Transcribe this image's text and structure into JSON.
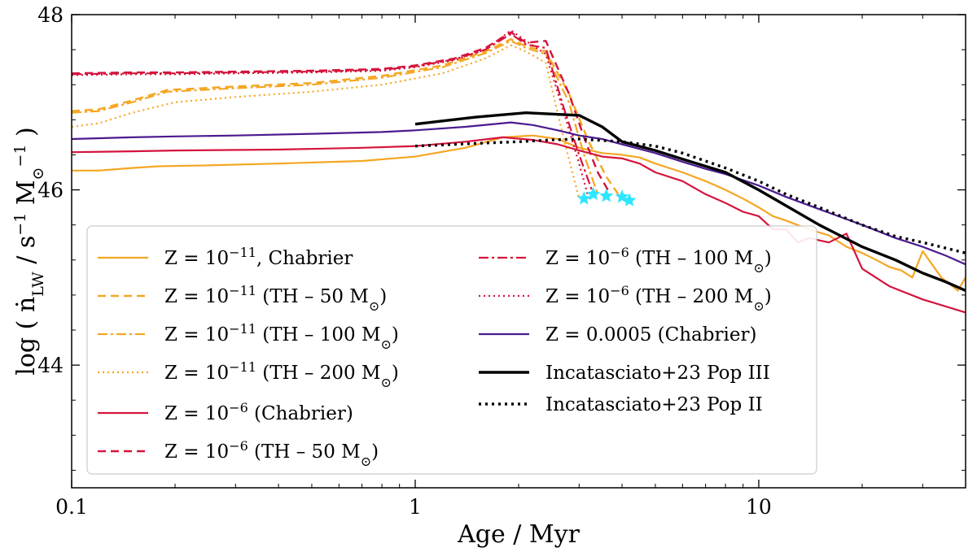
{
  "chart_data": {
    "type": "line",
    "xscale": "log",
    "xlim": [
      0.1,
      40
    ],
    "ylim": [
      42.6,
      48
    ],
    "xlabel": "Age / Myr",
    "ylabel": "log ( ṅ",
    "ylabel_sub": "LW",
    "ylabel_tail": " / s",
    "ylabel_exp1": "−1",
    "ylabel_mid": " M",
    "ylabel_sun": "⊙",
    "ylabel_exp2": "−1",
    "ylabel_close": " )",
    "xticks": [
      {
        "value": 0.1,
        "label": "0.1"
      },
      {
        "value": 1,
        "label": "1"
      },
      {
        "value": 10,
        "label": "10"
      }
    ],
    "yticks": [
      {
        "value": 44,
        "label": "44"
      },
      {
        "value": 46,
        "label": "46"
      },
      {
        "value": 48,
        "label": "48"
      }
    ],
    "legend_position": "lower-left",
    "series": [
      {
        "key": "z11_chab",
        "prefix": "Z = 10",
        "sup": "−11",
        "suffix": ", Chabrier",
        "color": "#f5a623",
        "dash": "",
        "width": 2.2,
        "x": [
          0.1,
          0.12,
          0.15,
          0.18,
          0.25,
          0.4,
          0.7,
          1.0,
          1.4,
          1.8,
          2.2,
          2.6,
          3.0,
          3.5,
          4.0,
          4.5,
          5.0,
          6.0,
          7.0,
          8.0,
          9.0,
          10.0,
          11.0,
          12.0,
          14.0,
          16.0,
          18.0,
          20.0,
          22.0,
          24.0,
          26.0,
          28.0,
          30.0,
          34.0,
          38.0,
          40.0
        ],
        "y": [
          46.22,
          46.22,
          46.25,
          46.27,
          46.28,
          46.3,
          46.33,
          46.38,
          46.48,
          46.6,
          46.62,
          46.58,
          46.48,
          46.42,
          46.4,
          46.37,
          46.3,
          46.2,
          46.1,
          46.0,
          45.9,
          45.8,
          45.7,
          45.65,
          45.55,
          45.48,
          45.35,
          45.28,
          45.2,
          45.12,
          45.08,
          45.0,
          45.3,
          45.0,
          44.85,
          45.0
        ]
      },
      {
        "key": "z11_th50",
        "prefix": "Z = 10",
        "sup": "−11",
        "suffix": " (TH – 50 M",
        "sun": "⊙",
        "close": ")",
        "color": "#f5a623",
        "dash": "10,6",
        "width": 2.4,
        "x": [
          0.1,
          0.12,
          0.15,
          0.19,
          0.3,
          0.5,
          0.8,
          1.2,
          1.6,
          1.9,
          2.1,
          2.4,
          2.8,
          3.2,
          3.6,
          3.9
        ],
        "y": [
          46.9,
          46.92,
          47.02,
          47.14,
          47.18,
          47.22,
          47.3,
          47.42,
          47.58,
          47.72,
          47.64,
          47.58,
          47.1,
          46.55,
          46.15,
          45.95
        ]
      },
      {
        "key": "z11_th100",
        "prefix": "Z = 10",
        "sup": "−11",
        "suffix": " (TH – 100 M",
        "sun": "⊙",
        "close": ")",
        "color": "#f5a623",
        "dash": "12,4,3,4",
        "width": 2.2,
        "x": [
          0.1,
          0.12,
          0.15,
          0.19,
          0.3,
          0.5,
          0.8,
          1.2,
          1.6,
          1.9,
          2.1,
          2.4,
          2.8,
          3.1,
          3.4
        ],
        "y": [
          46.88,
          46.9,
          47.0,
          47.12,
          47.16,
          47.2,
          47.28,
          47.4,
          47.56,
          47.7,
          47.62,
          47.55,
          47.0,
          46.4,
          45.95
        ]
      },
      {
        "key": "z11_th200",
        "prefix": "Z = 10",
        "sup": "−11",
        "suffix": " (TH – 200 M",
        "sun": "⊙",
        "close": ")",
        "color": "#f5a623",
        "dash": "2,4",
        "width": 2.2,
        "x": [
          0.1,
          0.12,
          0.15,
          0.2,
          0.3,
          0.5,
          0.8,
          1.2,
          1.6,
          1.9,
          2.1,
          2.4,
          2.7,
          3.0
        ],
        "y": [
          46.72,
          46.76,
          46.88,
          47.0,
          47.06,
          47.12,
          47.2,
          47.33,
          47.5,
          47.65,
          47.58,
          47.45,
          46.6,
          45.9
        ]
      },
      {
        "key": "z6_chab",
        "prefix": "Z = 10",
        "sup": "−6",
        "suffix": " (Chabrier)",
        "color": "#d4143c",
        "dash": "",
        "width": 2.2,
        "x": [
          0.1,
          0.15,
          0.2,
          0.4,
          0.7,
          1.0,
          1.4,
          1.8,
          2.2,
          2.6,
          3.0,
          3.5,
          4.0,
          4.5,
          5.0,
          6.0,
          7.0,
          8.0,
          9.0,
          10.0,
          11.0,
          12.0,
          13.0,
          14.0,
          16.0,
          18.0,
          20.0,
          24.0,
          30.0,
          40.0
        ],
        "y": [
          46.43,
          46.44,
          46.45,
          46.46,
          46.48,
          46.5,
          46.55,
          46.6,
          46.57,
          46.52,
          46.45,
          46.38,
          46.36,
          46.3,
          46.2,
          46.1,
          45.95,
          45.85,
          45.75,
          45.7,
          45.55,
          45.55,
          45.4,
          45.45,
          45.4,
          45.5,
          45.1,
          44.9,
          44.75,
          44.6
        ]
      },
      {
        "key": "z6_th50",
        "prefix": "Z = 10",
        "sup": "−6",
        "suffix": " (TH – 50 M",
        "sun": "⊙",
        "close": ")",
        "color": "#d4143c",
        "dash": "10,6",
        "width": 2.4,
        "x": [
          0.1,
          0.15,
          0.2,
          0.3,
          0.5,
          0.8,
          1.0,
          1.3,
          1.6,
          1.9,
          2.1,
          2.4,
          2.8,
          3.1,
          3.4,
          3.7
        ],
        "y": [
          47.33,
          47.34,
          47.34,
          47.35,
          47.36,
          47.38,
          47.42,
          47.5,
          47.62,
          47.8,
          47.68,
          47.7,
          47.1,
          46.6,
          46.2,
          45.95
        ]
      },
      {
        "key": "z6_th100",
        "prefix": "Z = 10",
        "sup": "−6",
        "suffix": " (TH – 100 M",
        "sun": "⊙",
        "close": ")",
        "color": "#d4143c",
        "dash": "12,4,3,4",
        "width": 2.2,
        "x": [
          0.1,
          0.15,
          0.2,
          0.3,
          0.5,
          0.8,
          1.0,
          1.3,
          1.6,
          1.9,
          2.1,
          2.4,
          2.7,
          3.0,
          3.3
        ],
        "y": [
          47.32,
          47.33,
          47.33,
          47.34,
          47.35,
          47.37,
          47.41,
          47.49,
          47.6,
          47.78,
          47.66,
          47.62,
          46.95,
          46.4,
          45.95
        ]
      },
      {
        "key": "z6_th200",
        "prefix": "Z = 10",
        "sup": "−6",
        "suffix": " (TH – 200 M",
        "sun": "⊙",
        "close": ")",
        "color": "#d4143c",
        "dash": "2,4",
        "width": 2.2,
        "x": [
          0.1,
          0.15,
          0.2,
          0.3,
          0.5,
          0.8,
          1.0,
          1.3,
          1.6,
          1.9,
          2.1,
          2.4,
          2.7,
          3.0,
          3.2
        ],
        "y": [
          47.31,
          47.32,
          47.32,
          47.33,
          47.34,
          47.36,
          47.4,
          47.48,
          47.6,
          47.82,
          47.7,
          47.55,
          46.9,
          46.3,
          45.9
        ]
      },
      {
        "key": "z0005_chab",
        "prefix": "Z = 0.0005 (Chabrier)",
        "color": "#4b1a8f",
        "dash": "",
        "width": 2.2,
        "x": [
          0.1,
          0.15,
          0.2,
          0.3,
          0.5,
          0.8,
          1.0,
          1.4,
          1.9,
          2.2,
          2.6,
          3.0,
          3.5,
          4.0,
          5.0,
          6.0,
          7.0,
          8.0,
          10.0,
          12.0,
          15.0,
          20.0,
          25.0,
          30.0,
          35.0,
          40.0
        ],
        "y": [
          46.58,
          46.6,
          46.61,
          46.62,
          46.64,
          46.66,
          46.68,
          46.72,
          46.77,
          46.74,
          46.68,
          46.62,
          46.58,
          46.52,
          46.42,
          46.32,
          46.24,
          46.18,
          46.05,
          45.92,
          45.78,
          45.6,
          45.45,
          45.35,
          45.25,
          45.15
        ]
      },
      {
        "key": "inc_pop3",
        "prefix": "Incatasciato+23 Pop III",
        "color": "#000000",
        "dash": "",
        "width": 3.4,
        "x": [
          1.0,
          1.5,
          2.1,
          3.0,
          3.5,
          4.0,
          5.0,
          6.0,
          8.0,
          10.0,
          12.0,
          15.0,
          20.0,
          25.0,
          30.0,
          35.0,
          40.0
        ],
        "y": [
          46.75,
          46.83,
          46.88,
          46.85,
          46.72,
          46.55,
          46.45,
          46.35,
          46.2,
          46.0,
          45.82,
          45.6,
          45.35,
          45.2,
          45.05,
          44.95,
          44.85
        ]
      },
      {
        "key": "inc_pop2",
        "prefix": "Incatasciato+23 Pop II",
        "color": "#000000",
        "dash": "3,5",
        "width": 3.4,
        "x": [
          1.0,
          1.5,
          2.0,
          2.5,
          3.0,
          4.0,
          5.0,
          6.0,
          8.0,
          10.0,
          12.0,
          15.0,
          20.0,
          25.0,
          30.0,
          40.0
        ],
        "y": [
          46.5,
          46.53,
          46.55,
          46.57,
          46.58,
          46.55,
          46.5,
          46.42,
          46.25,
          46.1,
          45.95,
          45.8,
          45.6,
          45.47,
          45.4,
          45.28
        ]
      }
    ],
    "stars": {
      "color": "#2ee6ff",
      "x": [
        3.1,
        3.3,
        3.6,
        4.0,
        4.2
      ],
      "y": [
        45.9,
        45.95,
        45.93,
        45.92,
        45.88
      ]
    }
  }
}
